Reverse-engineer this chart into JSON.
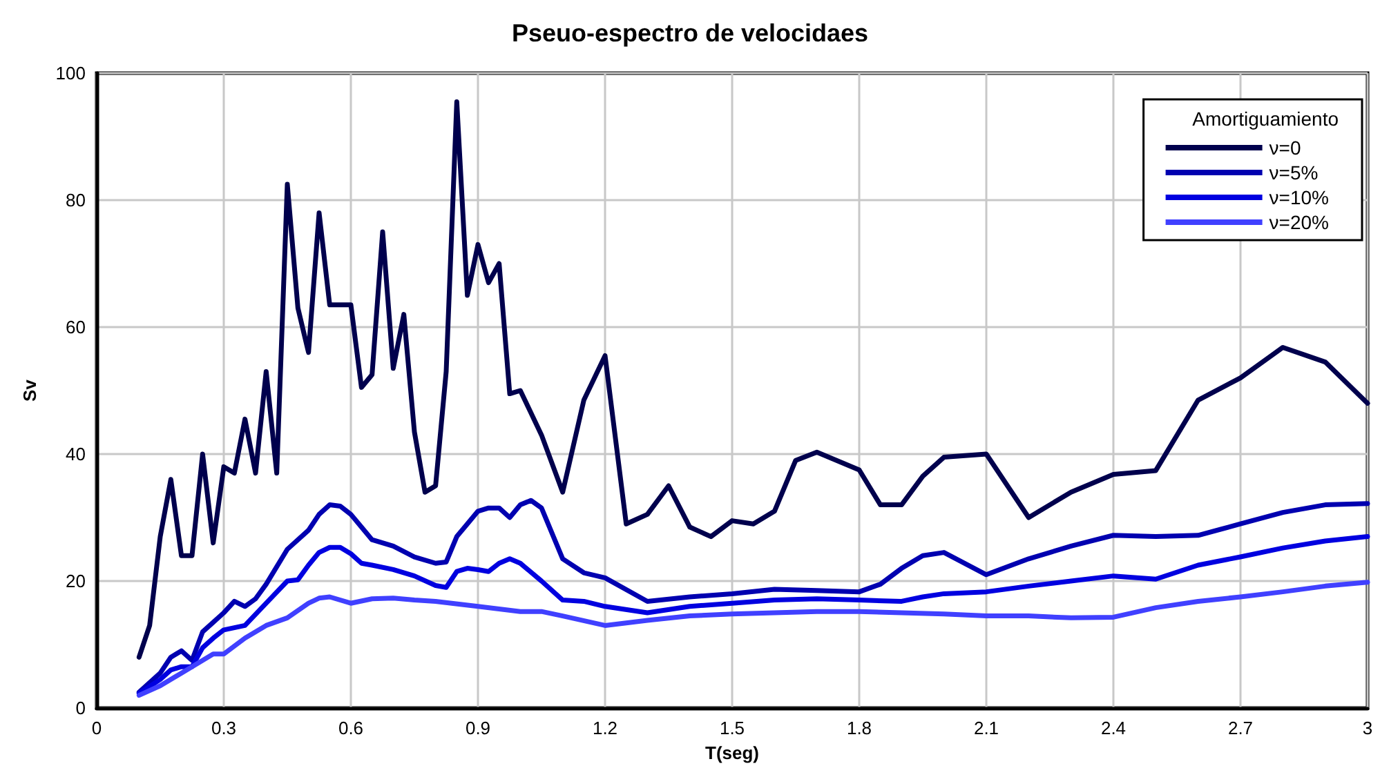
{
  "chart_data": {
    "type": "line",
    "title": "Pseuo-espectro de velocidaes",
    "xlabel": "T(seg)",
    "ylabel": "Sv",
    "legend_title": "Amortiguamiento",
    "legend": "top right",
    "grid": true,
    "marker": "none",
    "line_style": "solid",
    "xlim": [
      0,
      3
    ],
    "ylim": [
      0,
      100
    ],
    "xticks": [
      0,
      0.3,
      0.6,
      0.9,
      1.2,
      1.5,
      1.8,
      2.1,
      2.4,
      2.7,
      3
    ],
    "yticks": [
      0,
      20,
      40,
      60,
      80,
      100
    ],
    "series": [
      {
        "name": "ν=0",
        "color": "#00004d",
        "x": [
          0.1,
          0.125,
          0.15,
          0.175,
          0.2,
          0.225,
          0.25,
          0.275,
          0.3,
          0.325,
          0.35,
          0.375,
          0.4,
          0.425,
          0.45,
          0.475,
          0.5,
          0.525,
          0.55,
          0.575,
          0.6,
          0.625,
          0.65,
          0.675,
          0.7,
          0.725,
          0.75,
          0.775,
          0.8,
          0.825,
          0.85,
          0.875,
          0.9,
          0.925,
          0.95,
          0.975,
          1.0,
          1.05,
          1.1,
          1.15,
          1.2,
          1.25,
          1.3,
          1.35,
          1.4,
          1.45,
          1.5,
          1.55,
          1.6,
          1.65,
          1.7,
          1.8,
          1.85,
          1.9,
          1.95,
          2.0,
          2.1,
          2.2,
          2.3,
          2.4,
          2.5,
          2.6,
          2.7,
          2.8,
          2.9,
          3.0
        ],
        "values": [
          8,
          13,
          27,
          36,
          24,
          24,
          40,
          26,
          38,
          37,
          45.5,
          37,
          53,
          37,
          82.5,
          63,
          56,
          78,
          63.5,
          63.5,
          63.5,
          50.5,
          52.5,
          75,
          53.5,
          62,
          43.5,
          34,
          35,
          53,
          95.5,
          65,
          73,
          67,
          70,
          49.5,
          50,
          43,
          34,
          48.5,
          55.5,
          29,
          30.5,
          35,
          28.5,
          27,
          29.5,
          29,
          31,
          39,
          40.3,
          37.5,
          32,
          32,
          36.5,
          39.5,
          40,
          30,
          34,
          36.8,
          37.4,
          48.5,
          52,
          56.8,
          54.5,
          48
        ]
      },
      {
        "name": "ν=5%",
        "color": "#0000b0",
        "x": [
          0.1,
          0.15,
          0.175,
          0.2,
          0.225,
          0.25,
          0.275,
          0.3,
          0.325,
          0.35,
          0.375,
          0.4,
          0.45,
          0.5,
          0.525,
          0.55,
          0.575,
          0.6,
          0.65,
          0.7,
          0.75,
          0.8,
          0.825,
          0.85,
          0.9,
          0.925,
          0.95,
          0.975,
          1.0,
          1.025,
          1.05,
          1.1,
          1.15,
          1.2,
          1.3,
          1.4,
          1.5,
          1.6,
          1.7,
          1.8,
          1.85,
          1.9,
          1.95,
          2.0,
          2.1,
          2.2,
          2.3,
          2.4,
          2.5,
          2.6,
          2.7,
          2.8,
          2.9,
          3.0
        ],
        "values": [
          2.5,
          5.5,
          8,
          9,
          7.5,
          12,
          13.5,
          15,
          16.8,
          16,
          17.2,
          19.5,
          25,
          28,
          30.5,
          32,
          31.8,
          30.5,
          26.5,
          25.5,
          23.8,
          22.8,
          23,
          27,
          31,
          31.5,
          31.5,
          30,
          32,
          32.7,
          31.5,
          23.5,
          21.3,
          20.5,
          16.8,
          17.5,
          18,
          18.7,
          18.5,
          18.3,
          19.5,
          22,
          24,
          24.5,
          21,
          23.5,
          25.5,
          27.2,
          27,
          27.2,
          29,
          30.8,
          32,
          32.2
        ]
      },
      {
        "name": "ν=10%",
        "color": "#0000e0",
        "x": [
          0.1,
          0.15,
          0.175,
          0.2,
          0.225,
          0.25,
          0.275,
          0.3,
          0.35,
          0.4,
          0.45,
          0.475,
          0.5,
          0.525,
          0.55,
          0.575,
          0.6,
          0.625,
          0.65,
          0.7,
          0.75,
          0.8,
          0.825,
          0.85,
          0.875,
          0.9,
          0.925,
          0.95,
          0.975,
          1.0,
          1.05,
          1.1,
          1.15,
          1.2,
          1.3,
          1.4,
          1.5,
          1.6,
          1.7,
          1.8,
          1.9,
          1.95,
          2.0,
          2.1,
          2.2,
          2.3,
          2.4,
          2.5,
          2.6,
          2.7,
          2.8,
          2.9,
          3.0
        ],
        "values": [
          2.3,
          4.5,
          6,
          6.5,
          6.5,
          9.5,
          11,
          12.3,
          13,
          16.5,
          20,
          20.2,
          22.5,
          24.5,
          25.3,
          25.3,
          24.3,
          22.8,
          22.5,
          21.8,
          20.8,
          19.3,
          19,
          21.5,
          22,
          21.8,
          21.5,
          22.8,
          23.5,
          22.8,
          20,
          17,
          16.8,
          16,
          15,
          16,
          16.5,
          17,
          17.2,
          17,
          16.8,
          17.5,
          18,
          18.3,
          19.2,
          20,
          20.8,
          20.3,
          22.5,
          23.8,
          25.2,
          26.3,
          27
        ]
      },
      {
        "name": "ν=20%",
        "color": "#4040ff",
        "x": [
          0.1,
          0.15,
          0.2,
          0.25,
          0.275,
          0.3,
          0.35,
          0.4,
          0.45,
          0.5,
          0.525,
          0.55,
          0.6,
          0.65,
          0.7,
          0.75,
          0.8,
          0.9,
          1.0,
          1.05,
          1.1,
          1.2,
          1.3,
          1.4,
          1.5,
          1.6,
          1.7,
          1.8,
          1.9,
          2.0,
          2.1,
          2.2,
          2.3,
          2.4,
          2.5,
          2.6,
          2.7,
          2.8,
          2.9,
          3.0
        ],
        "values": [
          2,
          3.5,
          5.5,
          7.5,
          8.5,
          8.5,
          11,
          13,
          14.2,
          16.5,
          17.3,
          17.5,
          16.5,
          17.2,
          17.3,
          17,
          16.8,
          16,
          15.2,
          15.2,
          14.5,
          13,
          13.8,
          14.5,
          14.8,
          15,
          15.2,
          15.2,
          15,
          14.8,
          14.5,
          14.5,
          14.2,
          14.3,
          15.8,
          16.8,
          17.5,
          18.3,
          19.2,
          19.8
        ]
      }
    ]
  }
}
